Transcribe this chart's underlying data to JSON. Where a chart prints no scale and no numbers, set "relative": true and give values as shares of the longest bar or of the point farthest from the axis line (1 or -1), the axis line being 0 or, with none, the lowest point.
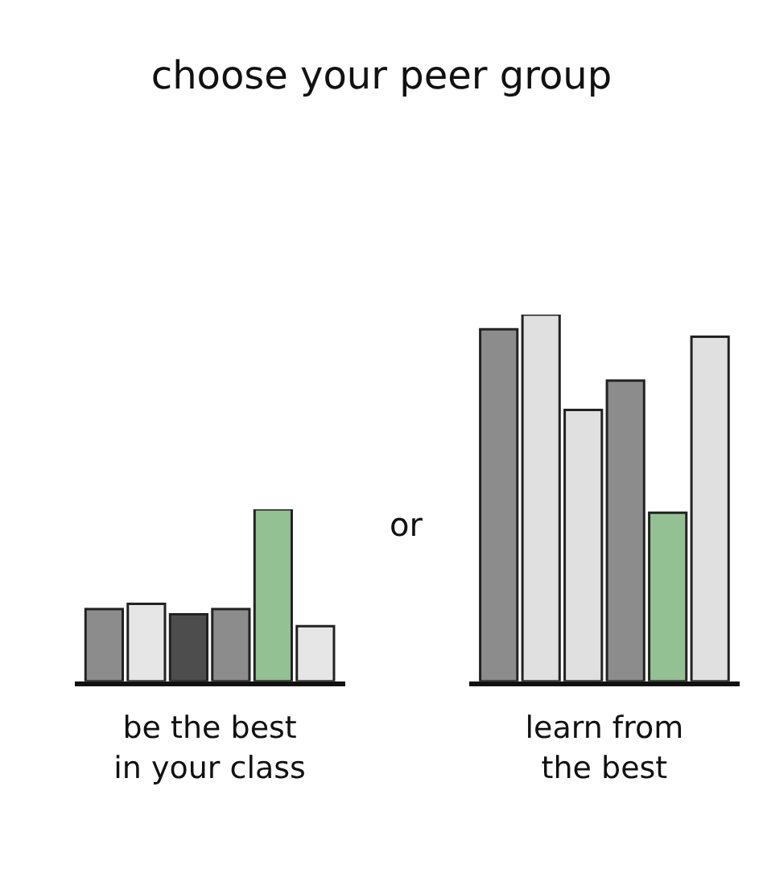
{
  "chart_data": [
    {
      "type": "bar",
      "title": "choose your peer group",
      "xlabel": "be the best\nin your class",
      "relative": true,
      "categories": [
        null,
        null,
        null,
        null,
        null,
        null
      ],
      "values": [
        0.42,
        0.45,
        0.39,
        0.42,
        1,
        0.32
      ],
      "colors": [
        "#8c8c8c",
        "#e6e6e6",
        "#4d4d4d",
        "#8c8c8c",
        "#93c193",
        "#e6e6e6"
      ],
      "annotations": [
        "or"
      ]
    },
    {
      "type": "bar",
      "xlabel": "learn from\nthe best",
      "relative": true,
      "categories": [
        null,
        null,
        null,
        null,
        null,
        null
      ],
      "values": [
        0.96,
        1,
        0.74,
        0.82,
        0.46,
        0.94
      ],
      "colors": [
        "#8c8c8c",
        "#e0e0e0",
        "#e0e0e0",
        "#8c8c8c",
        "#93c193",
        "#e0e0e0"
      ]
    }
  ]
}
